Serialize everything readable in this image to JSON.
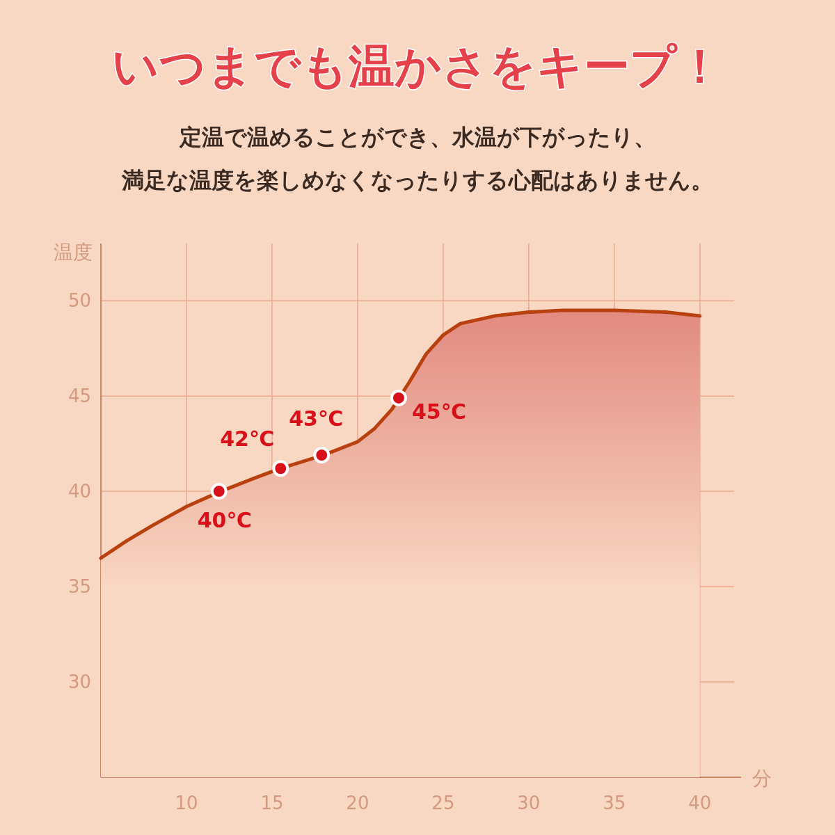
{
  "chart_data": {
    "type": "area",
    "title": "いつまでも温かさをキープ！",
    "subtitle": "定温で温めることができ、水温が下がったり、満足な温度を楽しめなくなったりする心配はありません。",
    "xlabel": "分",
    "ylabel": "温度",
    "series": [
      {
        "color": "#b8410f",
        "x": [
          5,
          6.5,
          8,
          10,
          12,
          14,
          15.5,
          18,
          20,
          21,
          22,
          23,
          24,
          25,
          26,
          28,
          30,
          32,
          35,
          38,
          40
        ],
        "values": [
          36.5,
          37.4,
          38.2,
          39.2,
          40.0,
          40.7,
          41.2,
          41.9,
          42.6,
          43.3,
          44.3,
          45.7,
          47.2,
          48.2,
          48.8,
          49.2,
          49.4,
          49.5,
          49.5,
          49.4,
          49.2
        ]
      },
      {
        "type": "scatter",
        "color": "#d8101a",
        "marker": "circle",
        "x": [
          11.9,
          15.5,
          17.9,
          22.4
        ],
        "values": [
          40.0,
          41.2,
          41.9,
          44.9
        ]
      }
    ],
    "annotations": [
      {
        "text": "40℃",
        "x": 11.9,
        "y": 40.0
      },
      {
        "text": "42℃",
        "x": 15.5,
        "y": 41.2
      },
      {
        "text": "43℃",
        "x": 17.9,
        "y": 41.9
      },
      {
        "text": "45℃",
        "x": 22.4,
        "y": 44.9
      }
    ],
    "xlim": [
      5,
      42
    ],
    "ylim": [
      25,
      53
    ],
    "xticks": [
      10,
      15,
      20,
      25,
      30,
      35,
      40
    ],
    "yticks": [
      30,
      35,
      40,
      45,
      50
    ],
    "grid": true
  }
}
